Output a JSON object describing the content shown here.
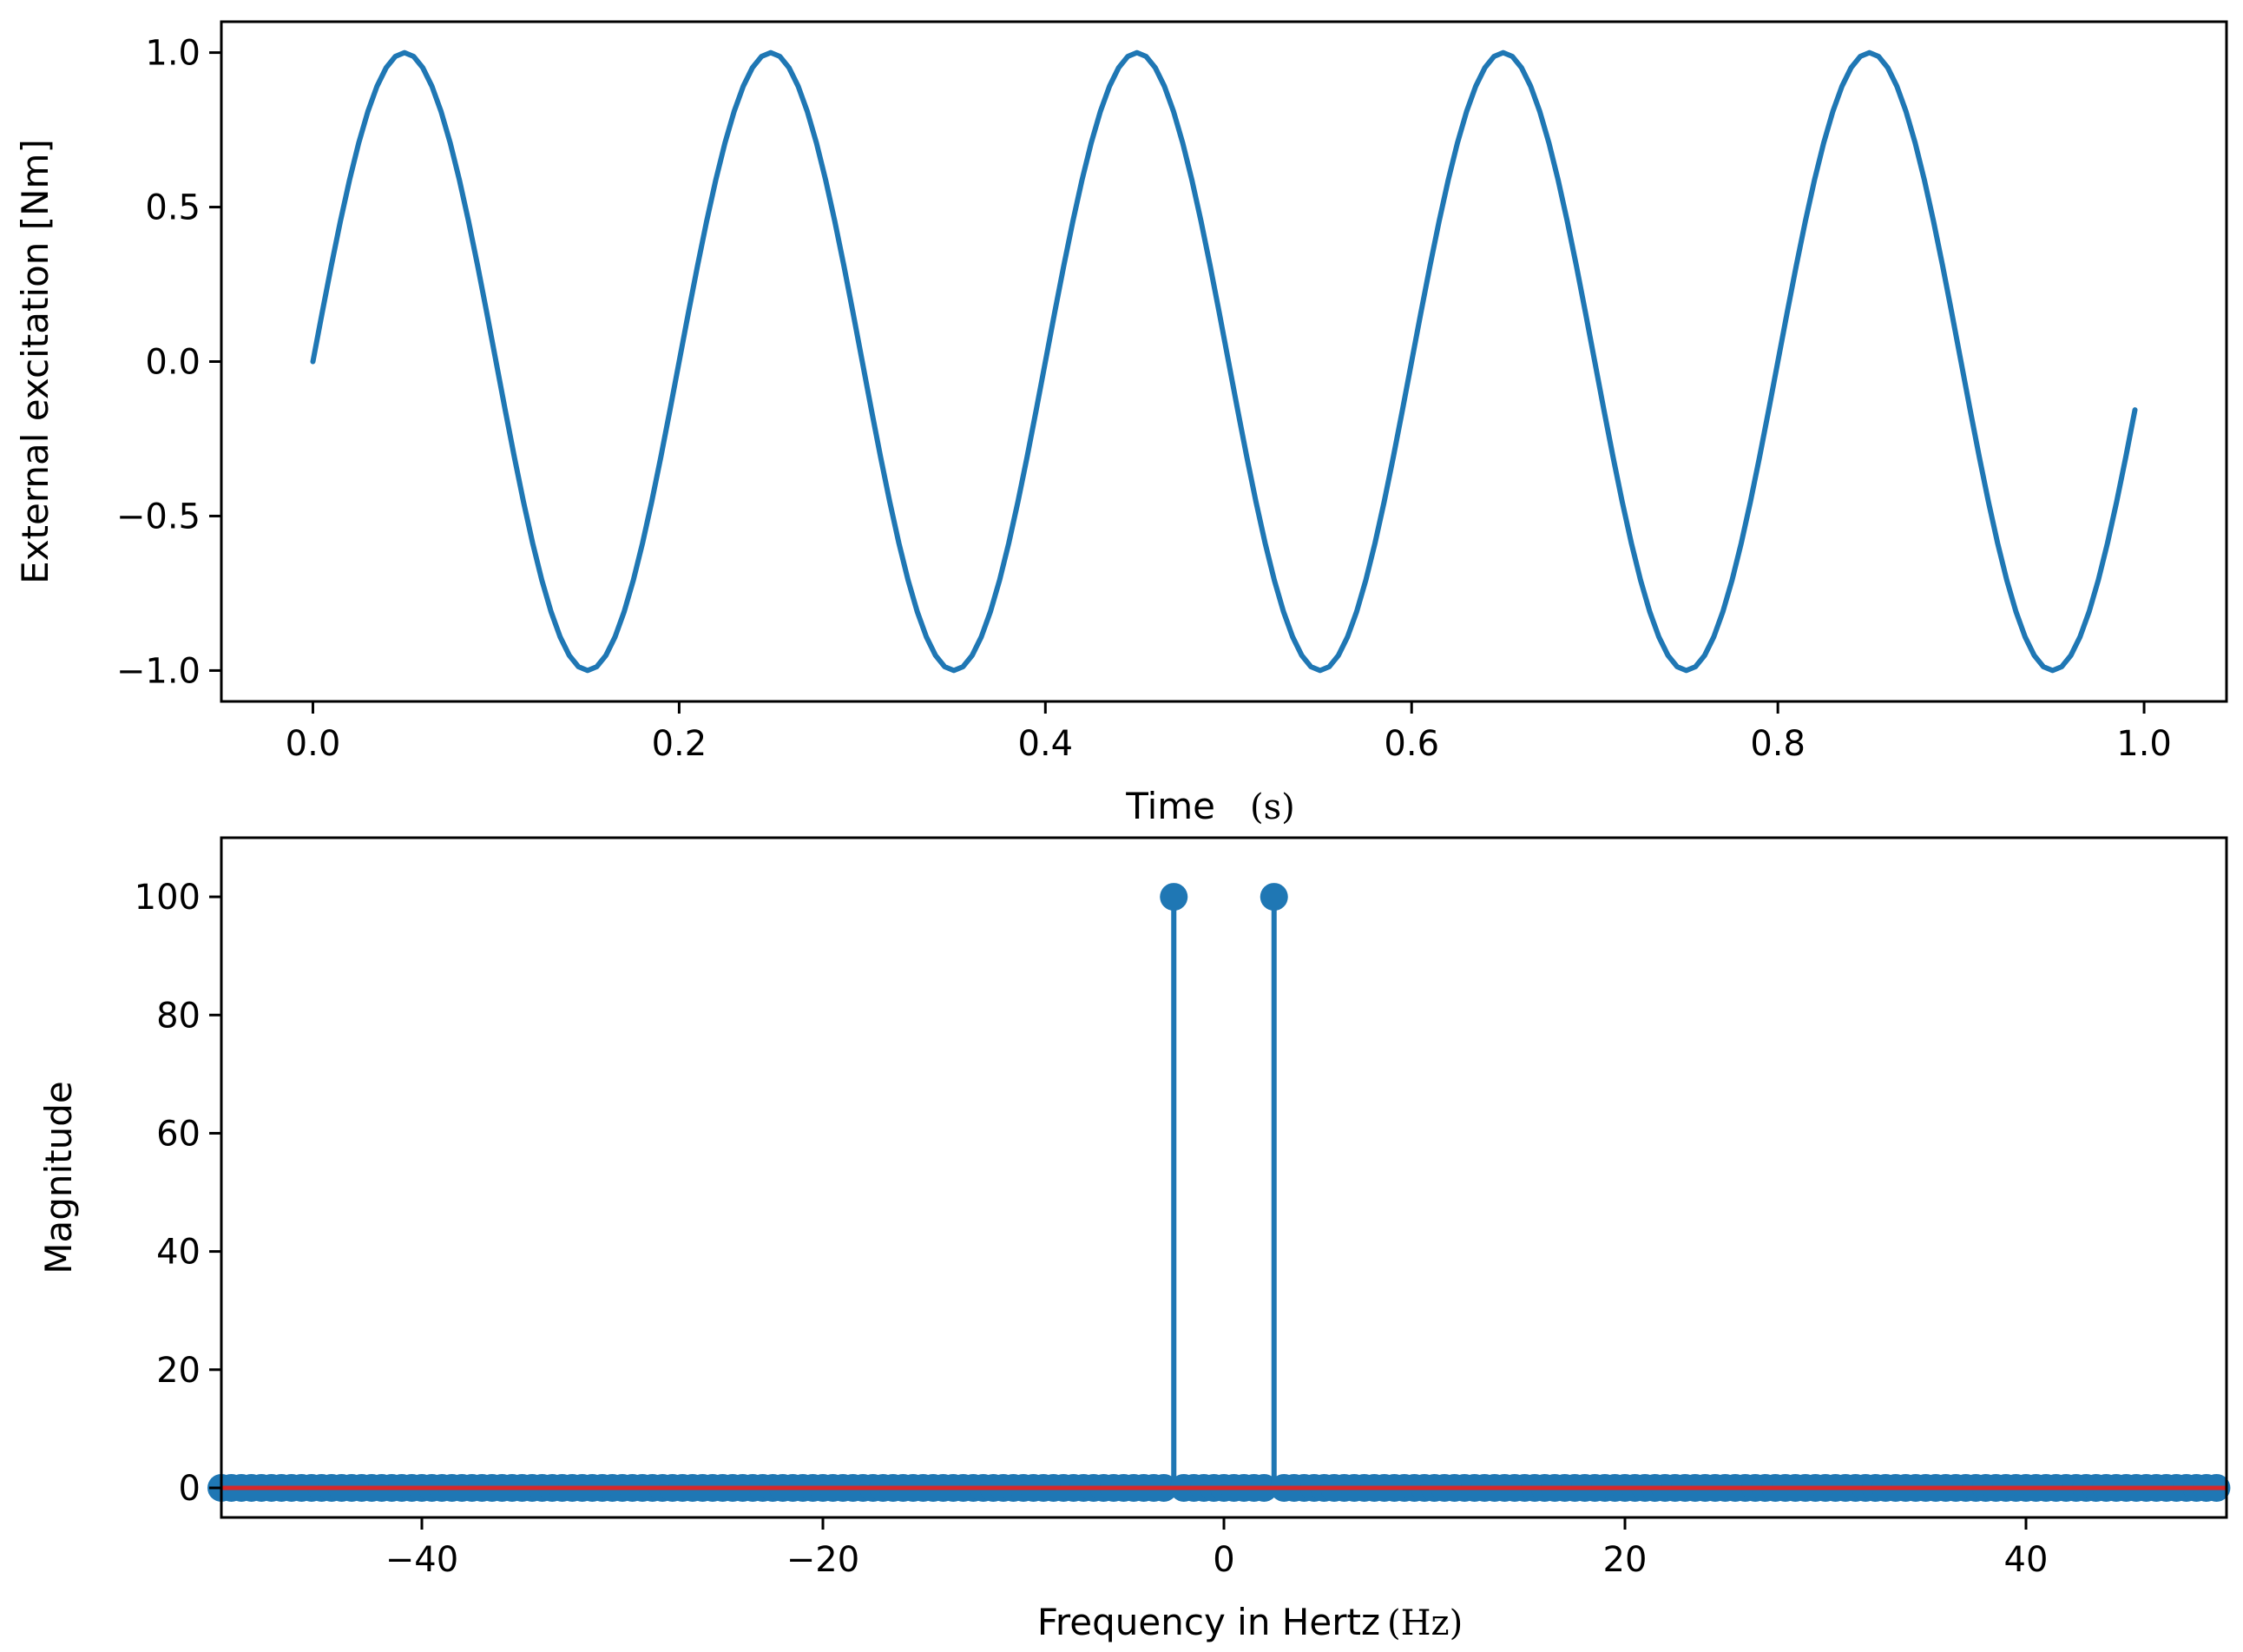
{
  "chart_data": [
    {
      "type": "line",
      "title": "",
      "xlabel": "Time",
      "xlabel_unit": "(s)",
      "ylabel": "External excitation [Nm]",
      "xlim": [
        -0.05,
        1.045
      ],
      "ylim": [
        -1.1,
        1.1
      ],
      "xticks": [
        0.0,
        0.2,
        0.4,
        0.6,
        0.8,
        1.0
      ],
      "xtick_labels": [
        "0.0",
        "0.2",
        "0.4",
        "0.6",
        "0.8",
        "1.0"
      ],
      "yticks": [
        1.0,
        0.5,
        0.0,
        -0.5,
        -1.0
      ],
      "ytick_labels": [
        "1.0",
        "0.5",
        "0.0",
        "−0.5",
        "−1.0"
      ],
      "grid": false,
      "series": [
        {
          "color": "#1f77b4",
          "function": "sin(2*pi*5*t)",
          "x_start": 0.0,
          "x_end": 0.995,
          "x_step": 0.005,
          "amplitude": 1.0,
          "frequency_hz": 5
        }
      ]
    },
    {
      "type": "stem",
      "title": "",
      "xlabel": "Frequency in Hertz",
      "xlabel_unit": "(Hz)",
      "ylabel": "Magnitude",
      "xlim": [
        -50,
        50
      ],
      "ylim": [
        -5,
        110
      ],
      "xticks": [
        -40,
        -20,
        0,
        20,
        40
      ],
      "xtick_labels": [
        "−40",
        "−20",
        "0",
        "20",
        "40"
      ],
      "yticks": [
        100,
        80,
        60,
        40,
        20,
        0
      ],
      "ytick_labels": [
        "100",
        "80",
        "60",
        "40",
        "20",
        "0"
      ],
      "grid": false,
      "marker_color": "#1f77b4",
      "baseline_color": "#d62728",
      "x_start": -50,
      "x_end": 49.5,
      "x_step": 0.5,
      "peaks": [
        {
          "x": -2.5,
          "y": 100
        },
        {
          "x": 2.5,
          "y": 100
        }
      ],
      "default_y": 0
    }
  ]
}
